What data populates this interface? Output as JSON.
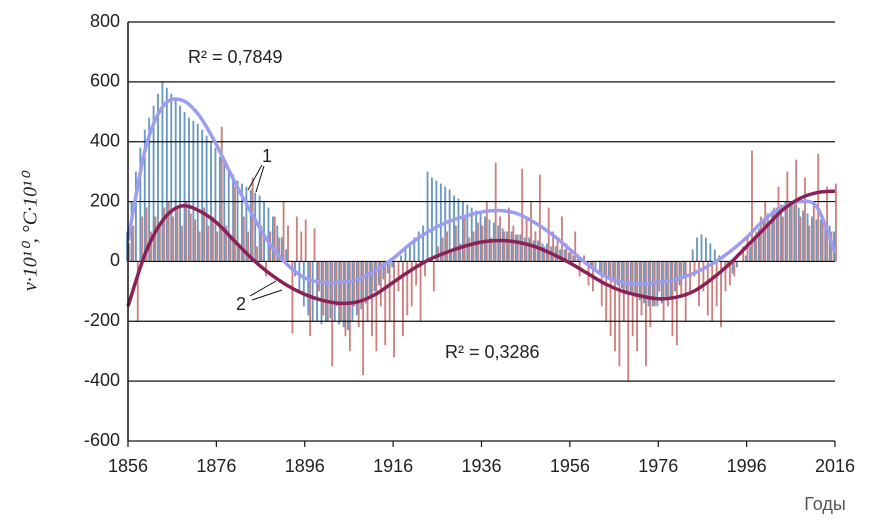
{
  "chart_data": {
    "type": "bar",
    "xlabel": "Годы",
    "ylabel": "ν·10¹⁰, °С·10¹⁰",
    "annotations": [
      "R² = 0,7849",
      "R² = 0,3286"
    ],
    "xlim": [
      1856,
      2016
    ],
    "xticks": [
      1856,
      1876,
      1896,
      1916,
      1936,
      1956,
      1976,
      1996,
      2016
    ],
    "ylim": [
      -600,
      800
    ],
    "yticks": [
      -600,
      -400,
      -200,
      0,
      200,
      400,
      600,
      800
    ],
    "grid": true,
    "bar_start": 1856,
    "series": [
      {
        "color": "#4f86b5",
        "values": [
          100,
          200,
          300,
          380,
          440,
          480,
          520,
          560,
          600,
          580,
          560,
          540,
          520,
          500,
          480,
          470,
          460,
          440,
          420,
          400,
          380,
          350,
          330,
          300,
          290,
          270,
          260,
          250,
          240,
          230,
          220,
          200,
          180,
          150,
          120,
          80,
          40,
          0,
          -50,
          -100,
          -150,
          -180,
          -200,
          -200,
          -210,
          -200,
          -190,
          -200,
          -210,
          -220,
          -230,
          -200,
          -180,
          -160,
          -140,
          -120,
          -100,
          -80,
          -60,
          -40,
          -20,
          0,
          20,
          40,
          60,
          80,
          100,
          120,
          300,
          280,
          270,
          260,
          250,
          240,
          220,
          210,
          200,
          190,
          180,
          170,
          160,
          150,
          140,
          130,
          120,
          110,
          100,
          100,
          90,
          90,
          80,
          80,
          70,
          70,
          60,
          60,
          50,
          50,
          40,
          40,
          30,
          20,
          10,
          0,
          -10,
          -20,
          -30,
          -40,
          -50,
          -60,
          -70,
          -80,
          -90,
          -100,
          -110,
          -120,
          -130,
          -140,
          -150,
          -150,
          -150,
          -140,
          -130,
          -120,
          -100,
          -80,
          -50,
          0,
          40,
          80,
          90,
          80,
          60,
          40,
          20,
          0,
          -20,
          -40,
          -20,
          0,
          20,
          50,
          80,
          110,
          140,
          160,
          170,
          180,
          190,
          200,
          200,
          190,
          180,
          170,
          160,
          150,
          140,
          140,
          130,
          120,
          100
        ]
      },
      {
        "color": "#c46a66",
        "values": [
          60,
          120,
          -200,
          150,
          180,
          100,
          150,
          120,
          180,
          200,
          150,
          180,
          120,
          200,
          160,
          140,
          100,
          180,
          120,
          150,
          100,
          450,
          120,
          80,
          250,
          60,
          150,
          100,
          280,
          50,
          120,
          -50,
          100,
          150,
          80,
          200,
          120,
          -240,
          150,
          100,
          140,
          -250,
          110,
          -100,
          -180,
          -200,
          -350,
          -150,
          -200,
          -250,
          -300,
          -150,
          -220,
          -380,
          -200,
          -250,
          -300,
          -150,
          -280,
          -200,
          -320,
          -100,
          -250,
          -180,
          -150,
          -80,
          -200,
          -50,
          0,
          -100,
          50,
          80,
          100,
          30,
          120,
          60,
          150,
          80,
          100,
          130,
          120,
          200,
          80,
          330,
          150,
          100,
          180,
          120,
          90,
          310,
          150,
          200,
          100,
          290,
          50,
          180,
          100,
          80,
          150,
          60,
          40,
          100,
          -50,
          20,
          -80,
          -100,
          0,
          -150,
          -200,
          -250,
          -300,
          -350,
          -200,
          -400,
          -250,
          -300,
          -180,
          -350,
          -220,
          -150,
          -100,
          -200,
          -150,
          -250,
          -280,
          -120,
          -200,
          -100,
          -50,
          -150,
          -100,
          -180,
          -200,
          -150,
          -220,
          -100,
          -80,
          -50,
          0,
          50,
          80,
          370,
          100,
          150,
          200,
          120,
          180,
          250,
          150,
          300,
          200,
          340,
          150,
          280,
          120,
          200,
          360,
          150,
          250,
          100,
          260
        ]
      },
      {
        "name": "1",
        "type": "line",
        "color": "#9d9df0",
        "x": [
          1856,
          1860,
          1864,
          1868,
          1872,
          1876,
          1880,
          1884,
          1888,
          1892,
          1896,
          1900,
          1904,
          1908,
          1912,
          1916,
          1920,
          1924,
          1928,
          1932,
          1936,
          1940,
          1944,
          1948,
          1952,
          1956,
          1960,
          1964,
          1968,
          1972,
          1976,
          1980,
          1984,
          1988,
          1992,
          1996,
          2000,
          2004,
          2008,
          2012,
          2016
        ],
        "values": [
          70,
          380,
          520,
          540,
          490,
          390,
          270,
          160,
          60,
          -10,
          -55,
          -70,
          -70,
          -60,
          -30,
          10,
          60,
          100,
          130,
          150,
          165,
          170,
          160,
          130,
          90,
          40,
          -10,
          -50,
          -70,
          -75,
          -70,
          -60,
          -40,
          -10,
          30,
          80,
          140,
          180,
          200,
          180,
          30
        ]
      },
      {
        "name": "2",
        "type": "line",
        "color": "#8b2257",
        "x": [
          1856,
          1860,
          1864,
          1868,
          1872,
          1876,
          1880,
          1884,
          1888,
          1892,
          1896,
          1900,
          1904,
          1908,
          1912,
          1916,
          1920,
          1924,
          1928,
          1932,
          1936,
          1940,
          1944,
          1948,
          1952,
          1956,
          1960,
          1964,
          1968,
          1972,
          1976,
          1980,
          1984,
          1988,
          1992,
          1996,
          2000,
          2004,
          2008,
          2012,
          2016
        ],
        "values": [
          -150,
          30,
          140,
          185,
          170,
          130,
          70,
          10,
          -40,
          -80,
          -110,
          -130,
          -140,
          -135,
          -110,
          -70,
          -30,
          5,
          30,
          50,
          65,
          70,
          65,
          50,
          25,
          -5,
          -40,
          -75,
          -100,
          -115,
          -125,
          -120,
          -100,
          -60,
          -10,
          50,
          110,
          170,
          210,
          230,
          235
        ]
      }
    ]
  }
}
